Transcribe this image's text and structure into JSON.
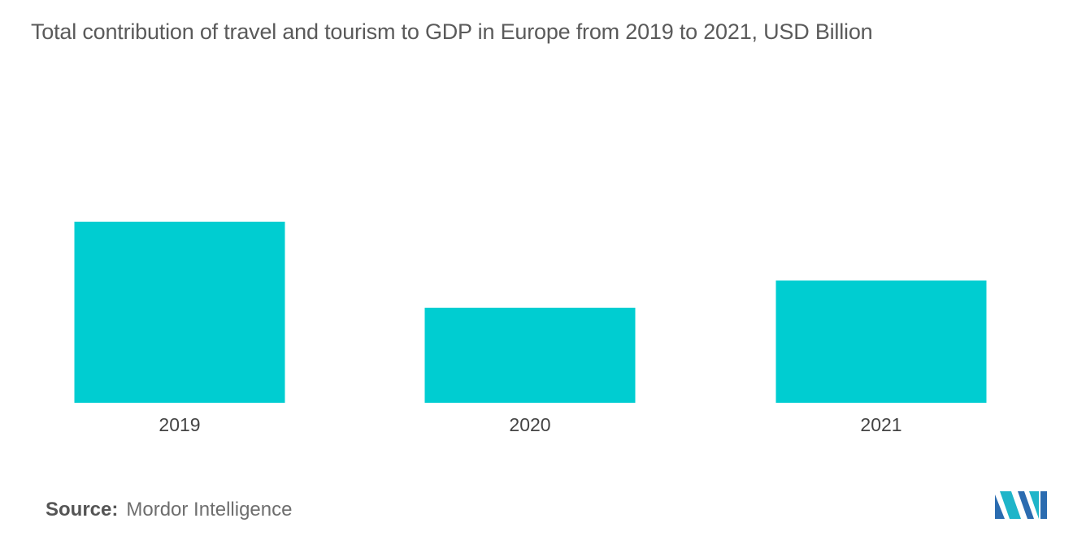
{
  "title": "Total contribution of travel and tourism to GDP in Europe from 2019 to 2021, USD Billion",
  "source": {
    "label": "Source:",
    "value": "Mordor Intelligence"
  },
  "logo": {
    "icon": "mordor-intelligence-logo",
    "colors": [
      "#1fb5c9",
      "#2b6cb0"
    ]
  },
  "colors": {
    "bar": "#00cdd1",
    "text": "#444444"
  },
  "chart_data": {
    "type": "bar",
    "categories": [
      "2019",
      "2020",
      "2021"
    ],
    "values": [
      1000,
      525,
      675
    ],
    "xlabel": "",
    "ylabel": "",
    "ylim": [
      0,
      1000
    ],
    "grid": false,
    "legend": "none"
  }
}
